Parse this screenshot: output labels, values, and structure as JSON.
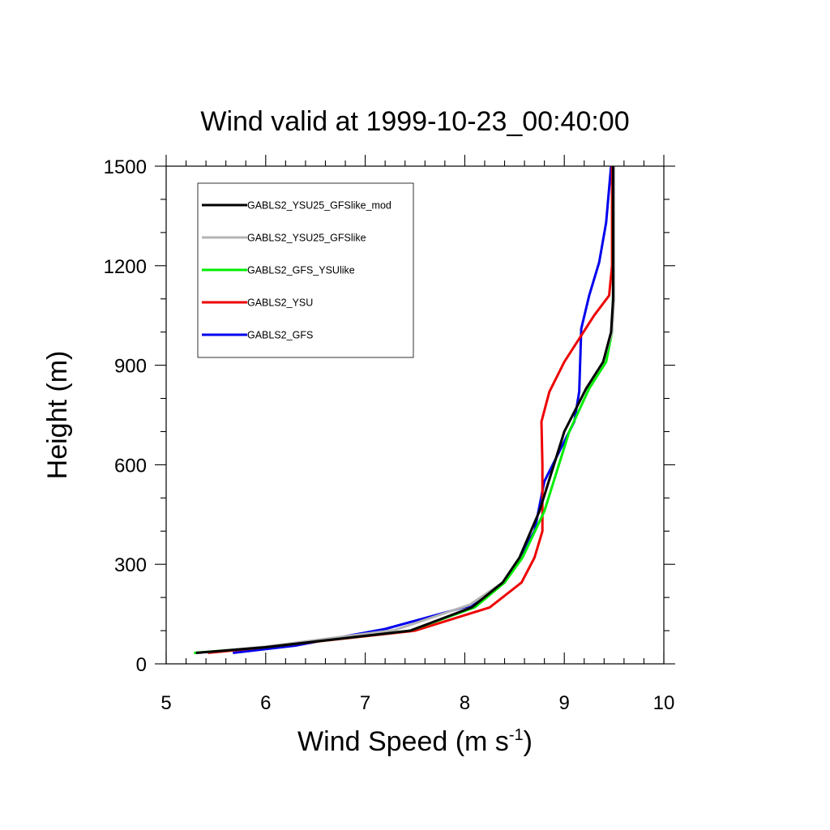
{
  "chart_data": {
    "type": "line",
    "title": "Wind valid at 1999-10-23_00:40:00",
    "xlabel_main": "Wind Speed (m s",
    "xlabel_sup": "-1",
    "xlabel_close": ")",
    "ylabel": "Height (m)",
    "xlim": [
      5,
      10
    ],
    "ylim": [
      0,
      1500
    ],
    "xticks": [
      5,
      6,
      7,
      8,
      9,
      10
    ],
    "yticks": [
      0,
      300,
      600,
      900,
      1200,
      1500
    ],
    "x_minor_step": 0.2,
    "y_minor_step": 100,
    "legend_position": "top-left",
    "series": [
      {
        "name": "GABLS2_GFS",
        "color": "#0000ee",
        "points": [
          [
            5.67,
            33
          ],
          [
            6.3,
            55
          ],
          [
            7.2,
            105
          ],
          [
            8.05,
            175
          ],
          [
            8.4,
            245
          ],
          [
            8.55,
            320
          ],
          [
            8.7,
            400
          ],
          [
            8.8,
            550
          ],
          [
            8.95,
            640
          ],
          [
            9.1,
            730
          ],
          [
            9.15,
            820
          ],
          [
            9.17,
            1010
          ],
          [
            9.25,
            1110
          ],
          [
            9.35,
            1210
          ],
          [
            9.42,
            1330
          ],
          [
            9.47,
            1500
          ]
        ]
      },
      {
        "name": "GABLS2_YSU",
        "color": "#ee0000",
        "points": [
          [
            5.42,
            33
          ],
          [
            6.0,
            50
          ],
          [
            7.5,
            100
          ],
          [
            8.25,
            170
          ],
          [
            8.57,
            245
          ],
          [
            8.7,
            320
          ],
          [
            8.78,
            400
          ],
          [
            8.78,
            600
          ],
          [
            8.77,
            730
          ],
          [
            8.85,
            820
          ],
          [
            9.0,
            910
          ],
          [
            9.3,
            1050
          ],
          [
            9.45,
            1110
          ],
          [
            9.48,
            1200
          ],
          [
            9.48,
            1500
          ]
        ]
      },
      {
        "name": "GABLS2_GFS_YSUlike",
        "color": "#00ee00",
        "points": [
          [
            5.28,
            33
          ],
          [
            6.0,
            50
          ],
          [
            7.45,
            100
          ],
          [
            8.1,
            170
          ],
          [
            8.4,
            245
          ],
          [
            8.58,
            320
          ],
          [
            8.8,
            460
          ],
          [
            9.05,
            700
          ],
          [
            9.25,
            830
          ],
          [
            9.42,
            910
          ],
          [
            9.48,
            1000
          ],
          [
            9.49,
            1100
          ],
          [
            9.49,
            1500
          ]
        ]
      },
      {
        "name": "GABLS2_YSU25_GFSlike",
        "color": "#b4b4b4",
        "points": [
          [
            5.33,
            33
          ],
          [
            6.0,
            52
          ],
          [
            7.3,
            102
          ],
          [
            8.05,
            178
          ],
          [
            8.38,
            245
          ],
          [
            8.55,
            320
          ],
          [
            8.75,
            460
          ],
          [
            9.0,
            700
          ],
          [
            9.22,
            830
          ],
          [
            9.39,
            910
          ],
          [
            9.48,
            1000
          ],
          [
            9.5,
            1100
          ],
          [
            9.5,
            1500
          ]
        ]
      },
      {
        "name": "GABLS2_YSU25_GFSlike_mod",
        "color": "#000000",
        "points": [
          [
            5.3,
            33
          ],
          [
            6.0,
            50
          ],
          [
            7.45,
            100
          ],
          [
            8.07,
            170
          ],
          [
            8.38,
            245
          ],
          [
            8.55,
            320
          ],
          [
            8.75,
            460
          ],
          [
            9.0,
            700
          ],
          [
            9.22,
            830
          ],
          [
            9.39,
            910
          ],
          [
            9.47,
            1000
          ],
          [
            9.49,
            1100
          ],
          [
            9.49,
            1500
          ]
        ]
      }
    ],
    "legend_order": [
      "GABLS2_YSU25_GFSlike_mod",
      "GABLS2_YSU25_GFSlike",
      "GABLS2_GFS_YSUlike",
      "GABLS2_YSU",
      "GABLS2_GFS"
    ]
  }
}
